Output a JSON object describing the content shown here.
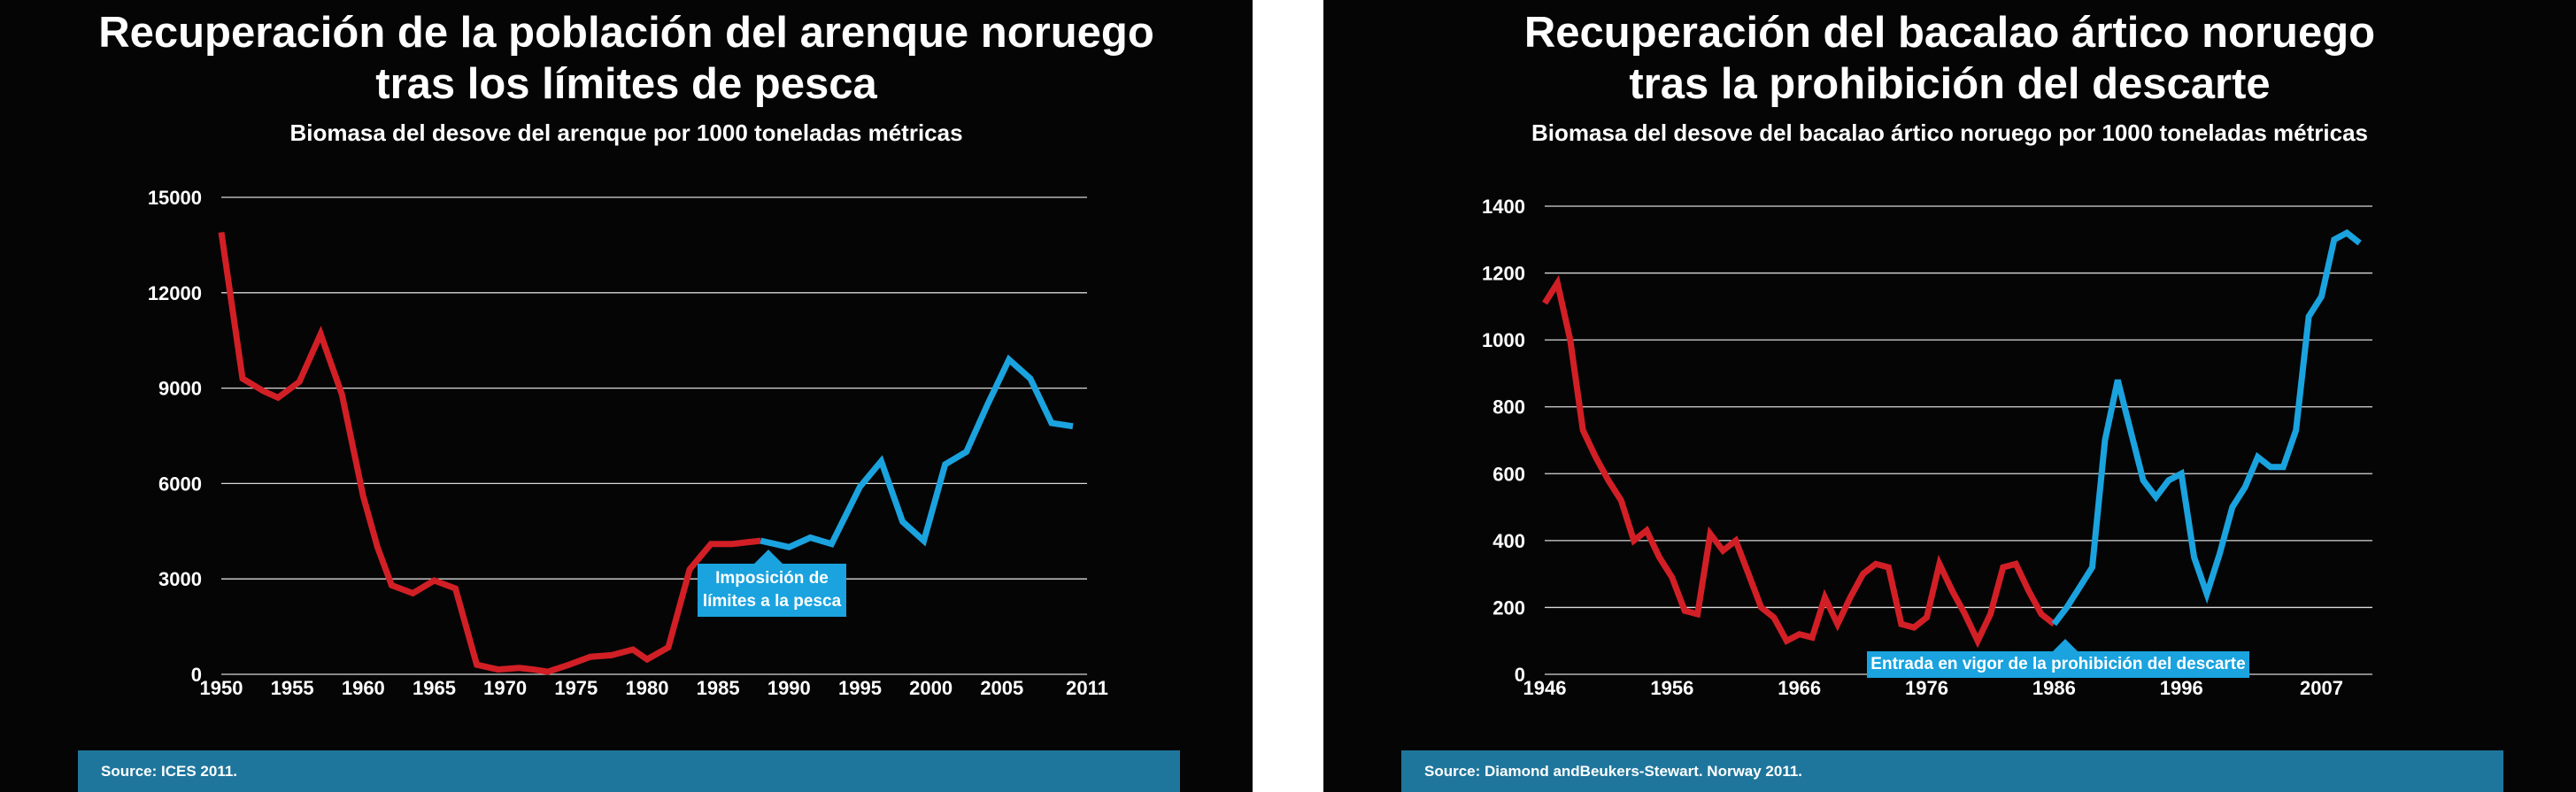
{
  "colors": {
    "before": "#d21f26",
    "after": "#1aa3de",
    "grid": "#d8d8d8",
    "footer": "#1f769c"
  },
  "chart_data": [
    {
      "type": "line",
      "title_lines": [
        "Recuperación de la población del arenque noruego",
        "tras los límites de pesca"
      ],
      "subtitle": "Biomasa del desove del arenque por 1000 toneladas métricas",
      "xlabel": "",
      "ylabel": "",
      "xlim": [
        1950,
        2011
      ],
      "ylim": [
        0,
        15000
      ],
      "y_ticks": [
        0,
        3000,
        6000,
        9000,
        12000,
        15000
      ],
      "x_ticks": [
        "1950",
        "1955",
        "1960",
        "1965",
        "1970",
        "1975",
        "1980",
        "1985",
        "1990",
        "1995",
        "2000",
        "2005",
        "2011"
      ],
      "x_tick_values": [
        1950,
        1955,
        1960,
        1965,
        1970,
        1975,
        1980,
        1985,
        1990,
        1995,
        2000,
        2005,
        2011
      ],
      "grid": true,
      "annotation": {
        "text_lines": [
          "Imposición de",
          "límites a la pesca"
        ],
        "x": 1988
      },
      "source": "Source: ICES 2011.",
      "series": [
        {
          "color_key": "before",
          "x": [
            1950,
            1951.5,
            1953,
            1954,
            1955.5,
            1957,
            1958.5,
            1960,
            1961,
            1962,
            1963.5,
            1965,
            1966.5,
            1968,
            1969.5,
            1971,
            1972,
            1973,
            1974.5,
            1976,
            1977.5,
            1979,
            1980,
            1981.5,
            1983,
            1984.5,
            1986,
            1987,
            1988
          ],
          "y": [
            13900,
            9300,
            8900,
            8700,
            9200,
            10700,
            8800,
            5600,
            4000,
            2800,
            2550,
            2950,
            2700,
            300,
            150,
            200,
            150,
            80,
            300,
            550,
            600,
            780,
            470,
            850,
            3300,
            4100,
            4100,
            4150,
            4200
          ]
        },
        {
          "color_key": "after",
          "x": [
            1988,
            1990,
            1991.5,
            1993,
            1995,
            1996.5,
            1998,
            1999.5,
            2001,
            2002.5,
            2004,
            2005.5,
            2007,
            2008.5,
            2010
          ],
          "y": [
            4200,
            4000,
            4300,
            4100,
            5900,
            6700,
            4800,
            4200,
            6600,
            7000,
            8500,
            9900,
            9300,
            7900,
            7800
          ]
        }
      ]
    },
    {
      "type": "line",
      "title_lines": [
        "Recuperación del bacalao ártico noruego",
        "tras la prohibición del descarte"
      ],
      "subtitle": "Biomasa del desove del bacalao ártico noruego por 1000 toneladas métricas",
      "xlabel": "",
      "ylabel": "",
      "xlim": [
        1946,
        2011
      ],
      "ylim": [
        0,
        1400
      ],
      "y_ticks": [
        0,
        200,
        400,
        600,
        800,
        1000,
        1200,
        1400
      ],
      "x_ticks": [
        "1946",
        "1956",
        "1966",
        "1976",
        "1986",
        "1996",
        "2007"
      ],
      "x_tick_values": [
        1946,
        1956,
        1966,
        1976,
        1986,
        1996,
        2007
      ],
      "grid": true,
      "annotation": {
        "text_lines": [
          "Entrada en vigor de la prohibición del descarte"
        ],
        "x": 1986
      },
      "source": "Source: Diamond andBeukers-Stewart. Norway 2011.",
      "series": [
        {
          "color_key": "before",
          "x": [
            1946,
            1947,
            1948,
            1949,
            1950,
            1951,
            1952,
            1953,
            1954,
            1955,
            1956,
            1957,
            1958,
            1959,
            1960,
            1961,
            1962,
            1963,
            1964,
            1965,
            1966,
            1967,
            1968,
            1969,
            1970,
            1971,
            1972,
            1973,
            1974,
            1975,
            1976,
            1977,
            1978,
            1979,
            1980,
            1981,
            1982,
            1983,
            1984,
            1985,
            1986
          ],
          "y": [
            1110,
            1170,
            1000,
            730,
            650,
            580,
            520,
            400,
            430,
            350,
            290,
            190,
            180,
            420,
            370,
            400,
            300,
            200,
            170,
            100,
            120,
            110,
            230,
            150,
            230,
            300,
            330,
            320,
            150,
            140,
            170,
            330,
            250,
            180,
            100,
            180,
            320,
            330,
            250,
            180,
            150
          ]
        },
        {
          "color_key": "after",
          "x": [
            1986,
            1987,
            1988,
            1989,
            1990,
            1991,
            1992,
            1993,
            1994,
            1995,
            1996,
            1997,
            1998,
            1999,
            2000,
            2001,
            2002,
            2003,
            2004,
            2005,
            2006,
            2007,
            2008,
            2009,
            2010
          ],
          "y": [
            150,
            200,
            260,
            320,
            700,
            880,
            730,
            580,
            530,
            580,
            600,
            350,
            240,
            360,
            500,
            560,
            650,
            620,
            620,
            730,
            1070,
            1130,
            1300,
            1320,
            1290
          ]
        }
      ]
    }
  ]
}
